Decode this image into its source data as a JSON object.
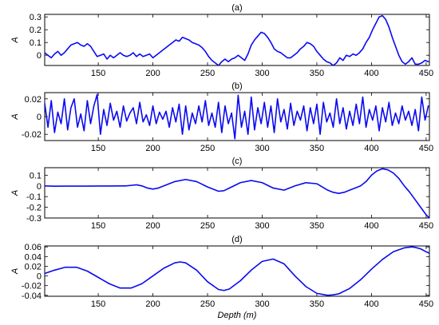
{
  "chart_data": [
    {
      "type": "line",
      "title": "(a)",
      "ylabel": "A",
      "xlabel": "",
      "xlim": [
        101,
        453
      ],
      "ylim": [
        -0.08,
        0.32
      ],
      "xticks": [
        150,
        200,
        250,
        300,
        350,
        400,
        450
      ],
      "yticks": [
        0,
        0.1,
        0.2,
        0.3
      ],
      "ytick_labels": [
        "0",
        "0.1",
        "0.2",
        "0.3"
      ],
      "series": [
        {
          "color": "#0a0af0",
          "x": [
            101,
            104,
            107,
            110,
            113,
            116,
            119,
            122,
            125,
            128,
            131,
            134,
            137,
            140,
            143,
            146,
            149,
            152,
            155,
            158,
            161,
            164,
            167,
            170,
            173,
            176,
            179,
            182,
            185,
            188,
            191,
            194,
            197,
            200,
            203,
            206,
            209,
            212,
            215,
            218,
            221,
            224,
            227,
            230,
            233,
            236,
            239,
            242,
            245,
            248,
            251,
            254,
            257,
            260,
            263,
            266,
            269,
            272,
            275,
            278,
            281,
            284,
            287,
            290,
            293,
            296,
            299,
            302,
            305,
            308,
            311,
            314,
            317,
            320,
            323,
            326,
            329,
            332,
            335,
            338,
            341,
            344,
            347,
            350,
            353,
            356,
            359,
            362,
            365,
            368,
            371,
            374,
            377,
            380,
            383,
            386,
            389,
            392,
            395,
            398,
            401,
            404,
            407,
            410,
            413,
            416,
            419,
            422,
            425,
            428,
            431,
            434,
            437,
            440,
            443,
            446,
            449,
            452
          ],
          "y": [
            0.02,
            0.0,
            -0.02,
            0.01,
            0.03,
            0.0,
            0.02,
            0.05,
            0.08,
            0.09,
            0.1,
            0.08,
            0.07,
            0.09,
            0.07,
            0.03,
            -0.01,
            0.0,
            0.01,
            -0.03,
            0.0,
            -0.02,
            0.0,
            0.02,
            0.0,
            -0.01,
            0.0,
            0.02,
            -0.01,
            0.01,
            -0.01,
            0.0,
            0.01,
            -0.02,
            0.0,
            0.02,
            0.04,
            0.06,
            0.08,
            0.1,
            0.12,
            0.11,
            0.14,
            0.13,
            0.12,
            0.1,
            0.09,
            0.08,
            0.06,
            0.03,
            -0.01,
            -0.04,
            -0.06,
            -0.08,
            -0.05,
            -0.03,
            -0.05,
            -0.03,
            -0.02,
            0.0,
            -0.02,
            -0.04,
            0.01,
            0.08,
            0.12,
            0.15,
            0.18,
            0.17,
            0.14,
            0.1,
            0.05,
            0.03,
            0.02,
            0.0,
            -0.02,
            -0.02,
            0.0,
            0.02,
            0.05,
            0.07,
            0.1,
            0.09,
            0.07,
            0.03,
            0.0,
            -0.03,
            -0.05,
            -0.06,
            -0.08,
            -0.06,
            -0.02,
            -0.04,
            0.0,
            -0.01,
            0.01,
            0.0,
            0.02,
            0.05,
            0.1,
            0.14,
            0.2,
            0.25,
            0.3,
            0.31,
            0.28,
            0.22,
            0.14,
            0.07,
            0.0,
            -0.05,
            -0.07,
            -0.05,
            -0.02,
            -0.07,
            -0.07,
            -0.06,
            -0.04,
            -0.05
          ]
        }
      ]
    },
    {
      "type": "line",
      "title": "(b)",
      "ylabel": "A",
      "xlabel": "",
      "xlim": [
        101,
        453
      ],
      "ylim": [
        -0.027,
        0.027
      ],
      "xticks": [
        150,
        200,
        250,
        300,
        350,
        400,
        450
      ],
      "yticks": [
        -0.02,
        0,
        0.02
      ],
      "ytick_labels": [
        "-0.02",
        "0",
        "0.02"
      ],
      "series": [
        {
          "color": "#0a0af0",
          "x": [
            101,
            104,
            107,
            110,
            113,
            116,
            119,
            122,
            125,
            128,
            131,
            134,
            137,
            140,
            143,
            146,
            149,
            152,
            155,
            158,
            161,
            164,
            167,
            170,
            173,
            176,
            179,
            182,
            185,
            188,
            191,
            194,
            197,
            200,
            203,
            206,
            209,
            212,
            215,
            218,
            221,
            224,
            227,
            230,
            233,
            236,
            239,
            242,
            245,
            248,
            251,
            254,
            257,
            260,
            263,
            266,
            269,
            272,
            275,
            278,
            281,
            284,
            287,
            290,
            293,
            296,
            299,
            302,
            305,
            308,
            311,
            314,
            317,
            320,
            323,
            326,
            329,
            332,
            335,
            338,
            341,
            344,
            347,
            350,
            353,
            356,
            359,
            362,
            365,
            368,
            371,
            374,
            377,
            380,
            383,
            386,
            389,
            392,
            395,
            398,
            401,
            404,
            407,
            410,
            413,
            416,
            419,
            422,
            425,
            428,
            431,
            434,
            437,
            440,
            443,
            446,
            449,
            452
          ],
          "y": [
            0.015,
            -0.012,
            0.018,
            -0.018,
            0.005,
            -0.008,
            0.02,
            -0.015,
            0.01,
            0.02,
            -0.012,
            0.003,
            -0.016,
            0.018,
            -0.008,
            0.012,
            0.025,
            -0.02,
            0.008,
            -0.01,
            0.015,
            -0.004,
            0.006,
            -0.012,
            0.012,
            -0.005,
            0.004,
            0.01,
            -0.008,
            0.016,
            -0.006,
            0.002,
            -0.01,
            0.012,
            -0.008,
            0.005,
            -0.003,
            0.006,
            -0.012,
            0.01,
            -0.006,
            0.014,
            -0.02,
            0.012,
            -0.015,
            0.004,
            -0.008,
            0.012,
            -0.006,
            0.018,
            -0.01,
            0.004,
            -0.012,
            0.016,
            -0.018,
            0.012,
            -0.008,
            0.004,
            -0.025,
            0.024,
            -0.012,
            0.006,
            -0.02,
            0.022,
            -0.015,
            0.01,
            -0.008,
            0.016,
            -0.012,
            0.012,
            -0.018,
            0.02,
            -0.006,
            0.008,
            -0.014,
            0.015,
            -0.01,
            0.006,
            -0.004,
            0.012,
            -0.016,
            0.01,
            -0.008,
            0.014,
            -0.02,
            0.016,
            -0.006,
            0.004,
            -0.012,
            0.02,
            -0.008,
            0.01,
            -0.014,
            0.006,
            -0.01,
            0.014,
            -0.008,
            0.022,
            -0.012,
            0.008,
            -0.004,
            0.012,
            -0.016,
            0.01,
            -0.006,
            0.016,
            -0.01,
            0.004,
            -0.008,
            0.012,
            -0.004,
            0.006,
            -0.01,
            0.008,
            -0.016,
            0.022,
            -0.004,
            0.012
          ]
        }
      ]
    },
    {
      "type": "line",
      "title": "(c)",
      "ylabel": "A",
      "xlabel": "",
      "xlim": [
        101,
        453
      ],
      "ylim": [
        -0.3,
        0.17
      ],
      "xticks": [
        150,
        200,
        250,
        300,
        350,
        400,
        450
      ],
      "yticks": [
        -0.3,
        -0.2,
        -0.1,
        0,
        0.1
      ],
      "ytick_labels": [
        "-0.3",
        "-0.2",
        "-0.1",
        "0",
        "0.1"
      ],
      "series": [
        {
          "color": "#0a0af0",
          "x": [
            101,
            110,
            120,
            130,
            140,
            150,
            160,
            170,
            175,
            180,
            185,
            190,
            195,
            200,
            205,
            210,
            220,
            230,
            240,
            250,
            260,
            265,
            270,
            280,
            290,
            300,
            310,
            320,
            330,
            340,
            350,
            360,
            365,
            370,
            375,
            380,
            385,
            390,
            395,
            400,
            405,
            410,
            415,
            420,
            425,
            430,
            435,
            440,
            445,
            450,
            453
          ],
          "y": [
            0.0,
            -0.003,
            -0.002,
            -0.002,
            -0.002,
            -0.001,
            -0.001,
            0.0,
            0.0,
            0.005,
            0.01,
            0.0,
            -0.02,
            -0.03,
            -0.02,
            0.0,
            0.04,
            0.06,
            0.04,
            -0.01,
            -0.05,
            -0.045,
            -0.02,
            0.03,
            0.05,
            0.03,
            -0.02,
            -0.04,
            0.0,
            0.03,
            0.02,
            -0.04,
            -0.06,
            -0.07,
            -0.06,
            -0.04,
            -0.02,
            0.0,
            0.04,
            0.1,
            0.14,
            0.16,
            0.15,
            0.12,
            0.07,
            0.0,
            -0.06,
            -0.13,
            -0.2,
            -0.27,
            -0.3
          ]
        }
      ]
    },
    {
      "type": "line",
      "title": "(d)",
      "ylabel": "A",
      "xlabel": "Depth (m)",
      "xlim": [
        101,
        453
      ],
      "ylim": [
        -0.042,
        0.062
      ],
      "xticks": [
        150,
        200,
        250,
        300,
        350,
        400,
        450
      ],
      "yticks": [
        -0.04,
        -0.02,
        0,
        0.02,
        0.04,
        0.06
      ],
      "ytick_labels": [
        "-0.04",
        "-0.02",
        "0",
        "0.02",
        "0.04",
        "0.06"
      ],
      "series": [
        {
          "color": "#0a0af0",
          "x": [
            101,
            110,
            120,
            130,
            140,
            150,
            160,
            170,
            180,
            190,
            200,
            210,
            220,
            225,
            230,
            240,
            250,
            260,
            265,
            270,
            280,
            290,
            300,
            310,
            320,
            330,
            340,
            350,
            360,
            365,
            370,
            380,
            390,
            400,
            410,
            420,
            430,
            437,
            440,
            445,
            450,
            453
          ],
          "y": [
            0.005,
            0.012,
            0.018,
            0.018,
            0.01,
            -0.003,
            -0.016,
            -0.025,
            -0.025,
            -0.016,
            0.0,
            0.016,
            0.027,
            0.029,
            0.027,
            0.012,
            -0.012,
            -0.028,
            -0.03,
            -0.027,
            -0.01,
            0.012,
            0.03,
            0.035,
            0.025,
            0.0,
            -0.022,
            -0.036,
            -0.04,
            -0.039,
            -0.037,
            -0.026,
            -0.008,
            0.014,
            0.034,
            0.05,
            0.058,
            0.06,
            0.059,
            0.056,
            0.05,
            0.047
          ]
        }
      ]
    }
  ]
}
